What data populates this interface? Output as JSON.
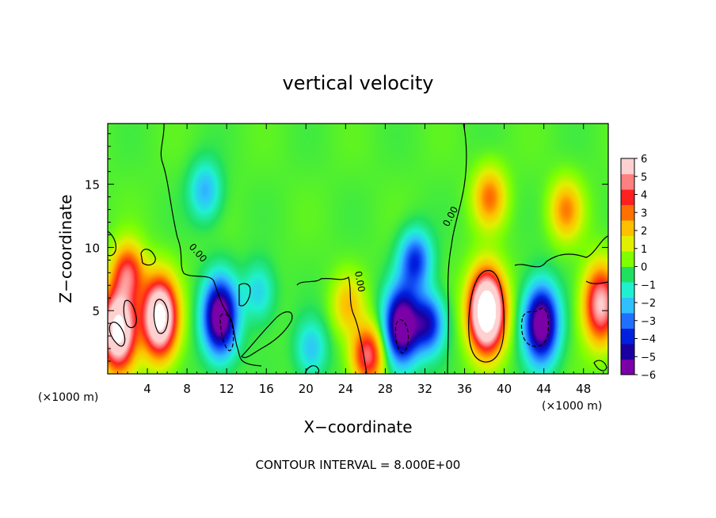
{
  "chart_data": {
    "type": "heatmap",
    "title": "vertical velocity",
    "xlabel": "X−coordinate",
    "ylabel": "Z−coordinate",
    "x_unit_left": "(×1000 m)",
    "x_unit_right": "(×1000 m)",
    "xlim": [
      0,
      50.5
    ],
    "ylim": [
      0,
      19.8
    ],
    "xticks": [
      4,
      8,
      12,
      16,
      20,
      24,
      28,
      32,
      36,
      40,
      44,
      48
    ],
    "yticks": [
      5,
      10,
      15
    ],
    "xtick_labels": [
      "4",
      "8",
      "12",
      "16",
      "20",
      "24",
      "28",
      "32",
      "36",
      "40",
      "44",
      "48"
    ],
    "ytick_labels": [
      "5",
      "10",
      "15"
    ],
    "zero_contour_label": "0.00",
    "footer": "CONTOUR INTERVAL = 8.000E+00",
    "colorbar": {
      "min": -6,
      "max": 6,
      "tick_values": [
        6,
        5,
        4,
        3,
        2,
        1,
        0,
        -1,
        -2,
        -3,
        -4,
        -5,
        -6
      ],
      "tick_labels": [
        "6",
        "5",
        "4",
        "3",
        "2",
        "1",
        "0",
        "−1",
        "−2",
        "−3",
        "−4",
        "−5",
        "−6"
      ],
      "colors": [
        "#7a00a8",
        "#1a00a0",
        "#0020e0",
        "#2070ff",
        "#30c0ff",
        "#20f0d0",
        "#20e060",
        "#80ff00",
        "#e0f000",
        "#ffc000",
        "#ff7000",
        "#ff2020",
        "#ff8080",
        "#ffd0d0"
      ]
    },
    "features": [
      {
        "kind": "updraft",
        "x": 1.0,
        "z": 3.5,
        "peak": 9
      },
      {
        "kind": "updraft",
        "x": 2.0,
        "z": 8.0,
        "peak": 4.5
      },
      {
        "kind": "updraft",
        "x": 5.2,
        "z": 4.5,
        "peak": 9
      },
      {
        "kind": "updraft",
        "x": 38.2,
        "z": 5.0,
        "peak": 11
      },
      {
        "kind": "updraft",
        "x": 49.7,
        "z": 5.5,
        "peak": 6
      },
      {
        "kind": "updraft",
        "x": 38.5,
        "z": 14.0,
        "peak": 3.2
      },
      {
        "kind": "updraft",
        "x": 46.2,
        "z": 13.0,
        "peak": 3.0
      },
      {
        "kind": "updraft",
        "x": 26.2,
        "z": 1.5,
        "peak": 5
      },
      {
        "kind": "updraft",
        "x": 24.2,
        "z": 5.5,
        "peak": 2.2
      },
      {
        "kind": "downdraft",
        "x": 11.3,
        "z": 4.5,
        "peak": -7
      },
      {
        "kind": "downdraft",
        "x": 29.6,
        "z": 3.8,
        "peak": -7
      },
      {
        "kind": "downdraft",
        "x": 32.3,
        "z": 4.0,
        "peak": -4.5
      },
      {
        "kind": "downdraft",
        "x": 31.0,
        "z": 9.0,
        "peak": -4.0
      },
      {
        "kind": "downdraft",
        "x": 43.7,
        "z": 4.0,
        "peak": -7
      },
      {
        "kind": "downdraft",
        "x": 9.8,
        "z": 14.5,
        "peak": -2.5
      },
      {
        "kind": "downdraft",
        "x": 15.2,
        "z": 6.5,
        "peak": -2.0
      },
      {
        "kind": "downdraft",
        "x": 20.5,
        "z": 2.0,
        "peak": -2.2
      }
    ]
  },
  "colors": {
    "background": "#ffffff",
    "frame": "#000000",
    "neutral_field": "#20e060"
  }
}
